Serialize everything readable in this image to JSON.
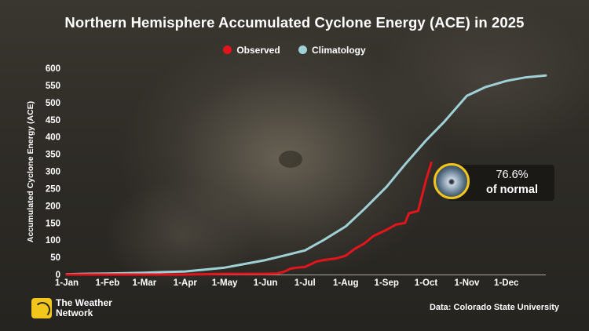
{
  "title": "Northern Hemisphere Accumulated Cyclone Energy (ACE) in 2025",
  "legend": {
    "observed_label": "Observed",
    "climatology_label": "Climatology"
  },
  "colors": {
    "observed": "#e3141c",
    "climatology": "#9fd0d6",
    "callout_border": "#f3c61c"
  },
  "callout": {
    "percent": "76.6%",
    "text": "of normal"
  },
  "logo": {
    "line1": "The Weather",
    "line2": "Network",
    "icon": "weather-network-logo-icon"
  },
  "source": "Data: Colorado State University",
  "chart_data": {
    "type": "line",
    "title": "Northern Hemisphere Accumulated Cyclone Energy (ACE) in 2025",
    "ylabel": "Accumulated Cyclone Energy (ACE)",
    "xlabel": "",
    "ylim": [
      0,
      600
    ],
    "yticks": [
      0,
      50,
      100,
      150,
      200,
      250,
      300,
      350,
      400,
      450,
      500,
      550,
      600
    ],
    "xticks": [
      "1-Jan",
      "1-Feb",
      "1-Mar",
      "1-Apr",
      "1-May",
      "1-Jun",
      "1-Jul",
      "1-Aug",
      "1-Sep",
      "1-Oct",
      "1-Nov",
      "1-Dec"
    ],
    "grid": false,
    "legend_position": "top-center",
    "series": [
      {
        "name": "Climatology",
        "dates": [
          "1-Jan",
          "15-Jan",
          "1-Feb",
          "15-Feb",
          "1-Mar",
          "15-Mar",
          "1-Apr",
          "15-Apr",
          "1-May",
          "15-May",
          "1-Jun",
          "15-Jun",
          "1-Jul",
          "15-Jul",
          "1-Aug",
          "15-Aug",
          "1-Sep",
          "15-Sep",
          "1-Oct",
          "15-Oct",
          "1-Nov",
          "15-Nov",
          "1-Dec",
          "15-Dec",
          "31-Dec"
        ],
        "values": [
          1,
          2,
          3,
          4,
          5,
          7,
          9,
          14,
          20,
          30,
          42,
          55,
          70,
          100,
          140,
          190,
          255,
          320,
          390,
          445,
          520,
          545,
          563,
          573,
          579
        ]
      },
      {
        "name": "Observed",
        "dates": [
          "1-Jan",
          "1-Feb",
          "1-Mar",
          "1-Apr",
          "15-Apr",
          "1-May",
          "1-Jun",
          "10-Jun",
          "15-Jun",
          "20-Jun",
          "25-Jun",
          "1-Jul",
          "10-Jul",
          "15-Jul",
          "25-Jul",
          "1-Aug",
          "8-Aug",
          "15-Aug",
          "22-Aug",
          "1-Sep",
          "8-Sep",
          "15-Sep",
          "18-Sep",
          "25-Sep",
          "1-Oct",
          "5-Oct"
        ],
        "values": [
          0,
          0,
          0,
          0,
          1,
          2,
          2,
          3,
          8,
          17,
          20,
          22,
          38,
          42,
          47,
          55,
          75,
          90,
          112,
          130,
          145,
          150,
          178,
          185,
          275,
          325
        ]
      }
    ]
  }
}
